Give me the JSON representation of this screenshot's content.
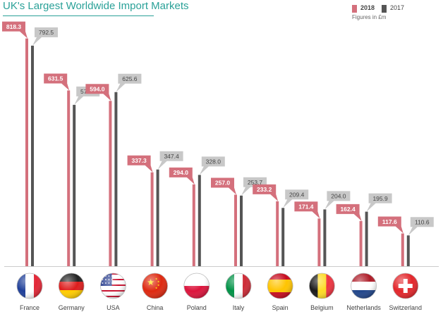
{
  "title": "UK's Largest Worldwide Import Markets",
  "legend": {
    "items": [
      {
        "label": "2018",
        "color": "#d4707c"
      },
      {
        "label": "2017",
        "color": "#555555"
      }
    ],
    "note": "Figures in £m"
  },
  "colors": {
    "accent": "#2aa198",
    "bar_2018": "#d4707c",
    "bar_2017": "#555555",
    "label_2018": "#d4707c",
    "label_2017": "#c8c8c8"
  },
  "chart_data": {
    "type": "bar",
    "title": "UK's Largest Worldwide Import Markets",
    "categories": [
      "France",
      "Germany",
      "USA",
      "China",
      "Poland",
      "Italy",
      "Spain",
      "Belgium",
      "Netherlands",
      "Switzerland"
    ],
    "series": [
      {
        "name": "2018",
        "values": [
          818.3,
          631.5,
          594.0,
          337.3,
          294.0,
          257.0,
          233.2,
          171.4,
          162.4,
          117.6
        ],
        "labels": [
          "818.3",
          "631.5",
          "594.0",
          "337.3",
          "294.0",
          "257.0",
          "233.2",
          "171.4",
          "162.4",
          "117.6"
        ]
      },
      {
        "name": "2017",
        "values": [
          792.5,
          579.8,
          625.6,
          347.4,
          328.0,
          253.7,
          209.4,
          204.0,
          195.9,
          110.6
        ],
        "labels": [
          "792.5",
          "579.8",
          "625.6",
          "347.4",
          "328.0",
          "253.7",
          "209.4",
          "204.0",
          "195.9",
          "110.6"
        ]
      }
    ],
    "unit": "£m",
    "ylim": [
      0,
      830
    ],
    "grid": false,
    "legend_position": "top-right",
    "flags": [
      "france-flag-icon",
      "germany-flag-icon",
      "usa-flag-icon",
      "china-flag-icon",
      "poland-flag-icon",
      "italy-flag-icon",
      "spain-flag-icon",
      "belgium-flag-icon",
      "netherlands-flag-icon",
      "switzerland-flag-icon"
    ]
  }
}
